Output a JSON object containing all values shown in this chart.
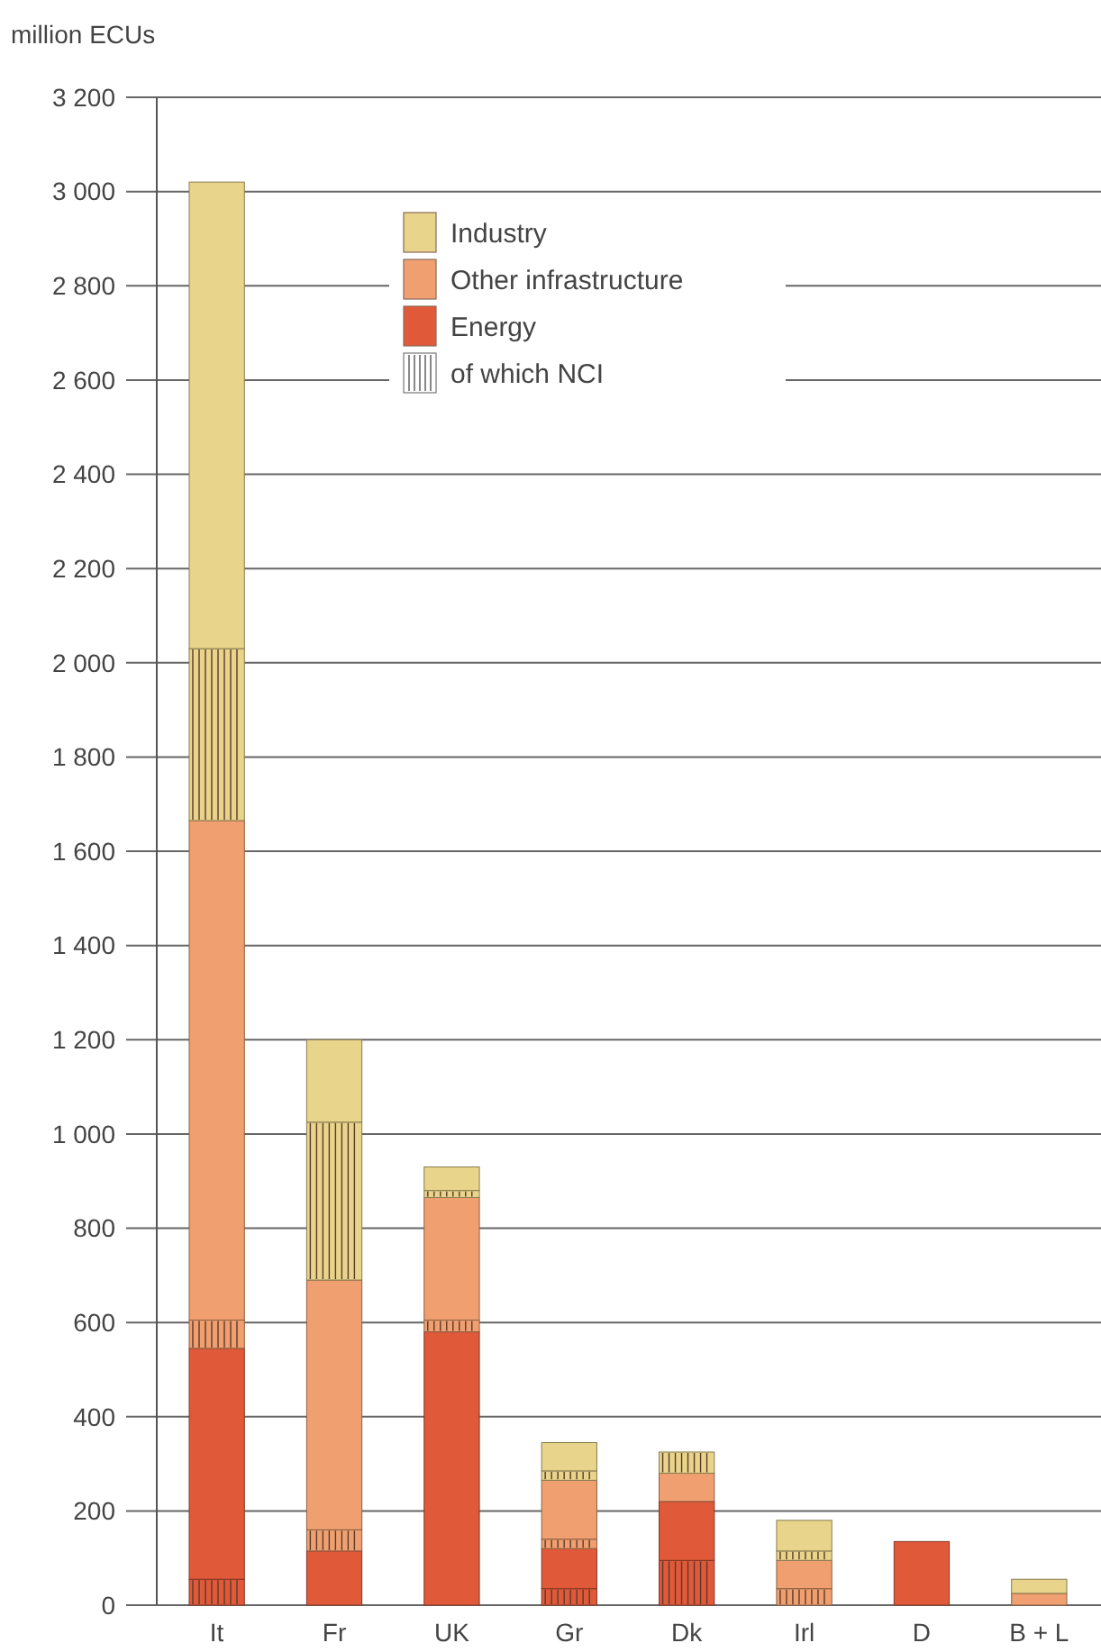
{
  "chart_data": {
    "type": "bar",
    "ylabel": "million ECUs",
    "stacked": true,
    "categories": [
      "It",
      "Fr",
      "UK",
      "Gr",
      "Dk",
      "Irl",
      "D",
      "B + L"
    ],
    "series": [
      {
        "color": "#e05a3a",
        "values": [
          55,
          null,
          null,
          35,
          95,
          null,
          null,
          null
        ]
      },
      {
        "name": "Energy",
        "color": "#e05a3a",
        "values": [
          490,
          115,
          580,
          85,
          125,
          null,
          135,
          null
        ]
      },
      {
        "color": "#f0a070",
        "values": [
          60,
          45,
          25,
          20,
          null,
          35,
          null,
          null
        ]
      },
      {
        "name": "Other infrastructure",
        "color": "#f0a070",
        "values": [
          1060,
          530,
          260,
          125,
          60,
          60,
          null,
          25
        ]
      },
      {
        "color": "#e8d48a",
        "values": [
          365,
          335,
          15,
          20,
          45,
          20,
          null,
          null
        ]
      },
      {
        "name": "Industry",
        "color": "#e8d48a",
        "values": [
          990,
          175,
          50,
          60,
          null,
          65,
          null,
          30
        ]
      }
    ],
    "annotations": [
      "of which NCI"
    ],
    "ylim": [
      0,
      3200
    ],
    "yticks": [
      0,
      200,
      400,
      600,
      800,
      {
        "value": 1000,
        "label": "1 000"
      },
      {
        "value": 1200,
        "label": "1 200"
      },
      {
        "value": 1400,
        "label": "1 400"
      },
      {
        "value": 1600,
        "label": "1 600"
      },
      {
        "value": 1800,
        "label": "1 800"
      },
      {
        "value": 2000,
        "label": "2 000"
      },
      {
        "value": 2200,
        "label": "2 200"
      },
      {
        "value": 2400,
        "label": "2 400"
      },
      {
        "value": 2600,
        "label": "2 600"
      },
      {
        "value": 2800,
        "label": "2 800"
      },
      {
        "value": 3000,
        "label": "3 000"
      },
      {
        "value": 3200,
        "label": "3 200"
      }
    ],
    "grid": "y",
    "legend": "top"
  }
}
